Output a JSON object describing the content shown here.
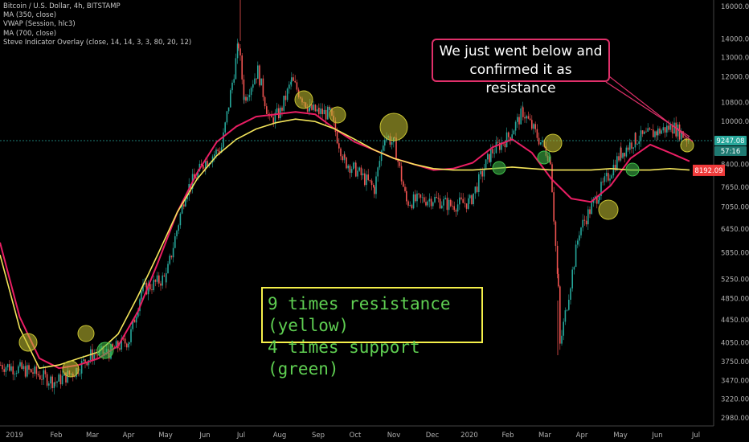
{
  "legend": {
    "symbol": "Bitcoin / U.S. Dollar, 4h, BITSTAMP",
    "ind1": "MA (350, close)",
    "ind2": "VWAP (Session, hlc3)",
    "ind3": "MA (700, close)",
    "ind4": "Steve Indicator Overlay (close, 14, 14, 3, 3, 80, 20, 12)"
  },
  "callout": {
    "line1": "We just went below and",
    "line2": "confirmed it as resistance"
  },
  "note": {
    "line1": "9 times resistance (yellow)",
    "line2": "4 times support (green)"
  },
  "colors": {
    "up": "#26a69a",
    "down": "#ef5350",
    "ma_pink": "#e91e63",
    "ma_yellow": "#f4e55a",
    "resist": "#c9c433",
    "support": "#3fbf4a",
    "price_line": "#26a69a"
  },
  "chart_data": {
    "type": "line",
    "scale": "log",
    "ylim": [
      2980,
      16000
    ],
    "y_ticks": [
      16000,
      14000,
      13000,
      12000,
      10800,
      10000,
      8400,
      7650,
      7050,
      6450,
      5850,
      5250,
      4850,
      4450,
      4050,
      3750,
      3470,
      3220,
      2980
    ],
    "x_ticks": [
      "2019",
      "Feb",
      "Mar",
      "Apr",
      "May",
      "Jun",
      "Jul",
      "Aug",
      "Sep",
      "Oct",
      "Nov",
      "Dec",
      "2020",
      "Feb",
      "Mar",
      "Apr",
      "May",
      "Jun",
      "Jul"
    ],
    "last_price_tag": "9247.08",
    "price_tag_2": "8192.09",
    "countdown_tag": "57:16",
    "price_path": [
      [
        "2019",
        3700
      ],
      [
        "Jan-15",
        3600
      ],
      [
        "Feb",
        3450
      ],
      [
        "Feb-15",
        3600
      ],
      [
        "Mar",
        3850
      ],
      [
        "Mar-15",
        3900
      ],
      [
        "Apr",
        4100
      ],
      [
        "Apr-10",
        5000
      ],
      [
        "May",
        5300
      ],
      [
        "May-15",
        7500
      ],
      [
        "Jun",
        8500
      ],
      [
        "Jun-15",
        9000
      ],
      [
        "Jun-26",
        13700
      ],
      [
        "Jul",
        11000
      ],
      [
        "Jul-10",
        12300
      ],
      [
        "Jul-20",
        10000
      ],
      [
        "Aug",
        10400
      ],
      [
        "Aug-10",
        11800
      ],
      [
        "Aug-20",
        10500
      ],
      [
        "Sep",
        10400
      ],
      [
        "Sep-15",
        10300
      ],
      [
        "Sep-24",
        8500
      ],
      [
        "Oct",
        8200
      ],
      [
        "Oct-20",
        7600
      ],
      [
        "Oct-26",
        9500
      ],
      [
        "Nov",
        9100
      ],
      [
        "Nov-20",
        7200
      ],
      [
        "Dec",
        7300
      ],
      [
        "Dec-15",
        7100
      ],
      [
        "2020",
        7200
      ],
      [
        "Jan-15",
        8800
      ],
      [
        "Feb",
        9400
      ],
      [
        "Feb-12",
        10400
      ],
      [
        "Mar",
        8600
      ],
      [
        "Mar-12",
        5000
      ],
      [
        "Mar-14",
        4000
      ],
      [
        "Apr",
        6400
      ],
      [
        "Apr-20",
        7500
      ],
      [
        "May",
        8800
      ],
      [
        "May-10",
        9300
      ],
      [
        "Jun",
        9600
      ],
      [
        "Jun-10",
        9800
      ],
      [
        "Jun-22",
        9247
      ]
    ],
    "series": [
      {
        "values": [
          6100,
          4500,
          3800,
          3650,
          3700,
          3800,
          4000,
          4600,
          5600,
          6900,
          8100,
          9200,
          9800,
          10200,
          10300,
          10400,
          10300,
          9700,
          9200,
          8900,
          8600,
          8400,
          8200,
          8250,
          8450,
          9000,
          9300,
          8800,
          7900,
          7300,
          7200,
          7700,
          8600,
          9100,
          8800,
          8500
        ]
      },
      {
        "values": [
          5800,
          4300,
          3650,
          3700,
          3800,
          3900,
          4200,
          4900,
          5800,
          6900,
          7900,
          8700,
          9300,
          9700,
          9950,
          10100,
          10000,
          9700,
          9300,
          8900,
          8600,
          8400,
          8250,
          8200,
          8200,
          8250,
          8300,
          8250,
          8200,
          8200,
          8200,
          8250,
          8200,
          8200,
          8250,
          8200
        ]
      }
    ],
    "annotations": {
      "resistance_markers": 9,
      "support_markers": 4
    }
  }
}
